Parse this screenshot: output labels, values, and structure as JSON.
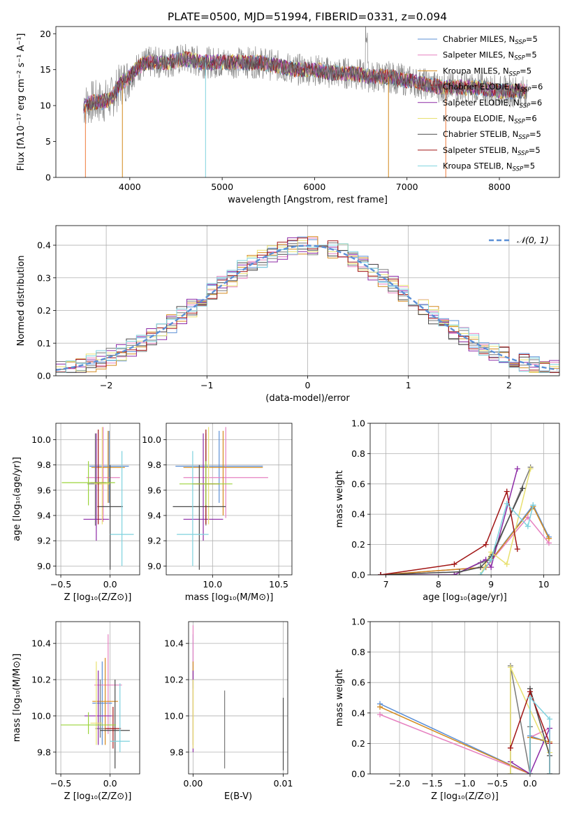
{
  "colors": {
    "series": [
      "#5b8fd6",
      "#e680c0",
      "#d4891c",
      "#7a7a7a",
      "#8c2aa6",
      "#e8e070",
      "#4a4a4a",
      "#a11515",
      "#7ed2de"
    ],
    "gauss": "#5b8fd6",
    "extra": [
      "#ef7a3a",
      "#9bd33a",
      "#8fa86a"
    ]
  },
  "chart_data": [
    {
      "id": "spectrum",
      "type": "line",
      "title": "PLATE=0500, MJD=51994, FIBERID=0331, z=0.094",
      "xlabel": "wavelength [Angstrom, rest frame]",
      "ylabel": "Flux [fλ10⁻¹⁷ erg cm⁻² s⁻¹ A⁻¹]",
      "xlim": [
        3200,
        8650
      ],
      "ylim": [
        0,
        21
      ],
      "xticks": [
        "4000",
        "5000",
        "6000",
        "7000",
        "8000"
      ],
      "yticks": [
        "0",
        "5",
        "10",
        "15",
        "20"
      ],
      "grid": false,
      "legend_position": "top-right",
      "legend": [
        {
          "name": "Chabrier MILES, N",
          "sub": "SSP",
          "tail": "=5"
        },
        {
          "name": "Salpeter MILES, N",
          "sub": "SSP",
          "tail": "=5"
        },
        {
          "name": "Kroupa MILES, N",
          "sub": "SSP",
          "tail": "=5"
        },
        {
          "name": "Chabrier ELODIE, N",
          "sub": "SSP",
          "tail": "=6"
        },
        {
          "name": "Salpeter ELODIE, N",
          "sub": "SSP",
          "tail": "=6"
        },
        {
          "name": "Kroupa ELODIE, N",
          "sub": "SSP",
          "tail": "=6"
        },
        {
          "name": "Chabrier STELIB, N",
          "sub": "SSP",
          "tail": "=5"
        },
        {
          "name": "Salpeter STELIB, N",
          "sub": "SSP",
          "tail": "=5"
        },
        {
          "name": "Kroupa STELIB, N",
          "sub": "SSP",
          "tail": "=5"
        }
      ],
      "continuum": [
        [
          3500,
          10
        ],
        [
          3600,
          10.5
        ],
        [
          3700,
          10.5
        ],
        [
          3800,
          11
        ],
        [
          3900,
          13
        ],
        [
          4000,
          14
        ],
        [
          4100,
          15.5
        ],
        [
          4200,
          16
        ],
        [
          4400,
          16
        ],
        [
          4600,
          16.5
        ],
        [
          4800,
          16
        ],
        [
          5000,
          16
        ],
        [
          5200,
          16
        ],
        [
          5400,
          16
        ],
        [
          5600,
          15.5
        ],
        [
          5800,
          15
        ],
        [
          6000,
          15
        ],
        [
          6200,
          14.5
        ],
        [
          6400,
          14.5
        ],
        [
          6600,
          14
        ],
        [
          6800,
          14
        ],
        [
          7000,
          13.5
        ],
        [
          7200,
          13
        ],
        [
          7400,
          12.5
        ],
        [
          7600,
          12.5
        ],
        [
          7800,
          12.5
        ],
        [
          8000,
          12
        ],
        [
          8200,
          12
        ],
        [
          8300,
          12
        ]
      ]
    },
    {
      "id": "residuals",
      "type": "line",
      "xlabel": "(data-model)/error",
      "ylabel": "Normed distribution",
      "xlim": [
        -2.5,
        2.5
      ],
      "ylim": [
        0,
        0.46
      ],
      "xticks": [
        "−2",
        "−1",
        "0",
        "1",
        "2"
      ],
      "yticks": [
        "0.0",
        "0.1",
        "0.2",
        "0.3",
        "0.4"
      ],
      "grid": true,
      "legend_position": "top-right",
      "legend": [
        "𝒩(0, 1)"
      ]
    },
    {
      "id": "age-vs-Z",
      "type": "scatter",
      "xlabel": "Z [log₁₀(Z/Z⊙)]",
      "ylabel": "age  [log₁₀(age/yr)]",
      "xlim": [
        -0.55,
        0.3
      ],
      "ylim": [
        8.93,
        10.13
      ],
      "xticks": [
        "−0.5",
        "0.0"
      ],
      "yticks": [
        "9.0",
        "9.2",
        "9.4",
        "9.6",
        "9.8",
        "10.0"
      ],
      "grid": true,
      "errorbars": [
        {
          "x": -0.01,
          "y": 9.79,
          "xerr": 0.2,
          "ylo": 9.5,
          "yhi": 10.07
        },
        {
          "x": -0.07,
          "y": 9.7,
          "xerr": 0.17,
          "ylo": 9.35,
          "yhi": 10.1
        },
        {
          "x": -0.02,
          "y": 9.78,
          "xerr": 0.17,
          "ylo": 9.5,
          "yhi": 10.07
        },
        {
          "x": -0.15,
          "y": 9.65,
          "xerr": 0.08,
          "ylo": 9.32,
          "yhi": 10.05
        },
        {
          "x": -0.14,
          "y": 9.37,
          "xerr": 0.13,
          "ylo": 9.2,
          "yhi": 10.05
        },
        {
          "x": -0.08,
          "y": 9.65,
          "xerr": 0.08,
          "ylo": 9.33,
          "yhi": 10.1
        },
        {
          "x": 0.0,
          "y": 9.47,
          "xerr": 0.13,
          "ylo": 8.97,
          "yhi": 9.8
        },
        {
          "x": -0.12,
          "y": 9.66,
          "xerr": 0.08,
          "ylo": 9.33,
          "yhi": 10.08
        },
        {
          "x": 0.12,
          "y": 9.25,
          "xerr": 0.12,
          "ylo": 9.0,
          "yhi": 9.91
        },
        {
          "x": -0.22,
          "y": 9.66,
          "xerr": 0.27,
          "ylo": 9.48,
          "yhi": 9.83
        }
      ]
    },
    {
      "id": "age-vs-mass",
      "type": "scatter",
      "xlabel": "mass [log₁₀(M/M⊙)]",
      "ylabel": "",
      "xlim": [
        9.65,
        10.6
      ],
      "ylim": [
        8.93,
        10.13
      ],
      "xticks": [
        "10.0",
        "10.5"
      ],
      "yticks": [
        "9.0",
        "9.2",
        "9.4",
        "9.6",
        "9.8",
        "10.0"
      ],
      "grid": true,
      "errorbars": [
        {
          "x": 10.05,
          "y": 9.79,
          "xerr": 0.33,
          "ylo": 9.5,
          "yhi": 10.07
        },
        {
          "x": 10.1,
          "y": 9.7,
          "xerr": 0.32,
          "ylo": 9.38,
          "yhi": 10.1
        },
        {
          "x": 10.08,
          "y": 9.78,
          "xerr": 0.3,
          "ylo": 9.4,
          "yhi": 10.07
        },
        {
          "x": 9.95,
          "y": 9.65,
          "xerr": 0.07,
          "ylo": 9.32,
          "yhi": 10.05
        },
        {
          "x": 9.93,
          "y": 9.37,
          "xerr": 0.15,
          "ylo": 9.2,
          "yhi": 10.05
        },
        {
          "x": 9.97,
          "y": 9.65,
          "xerr": 0.08,
          "ylo": 9.33,
          "yhi": 10.1
        },
        {
          "x": 9.9,
          "y": 9.47,
          "xerr": 0.2,
          "ylo": 8.97,
          "yhi": 9.8
        },
        {
          "x": 9.95,
          "y": 9.65,
          "xerr": 0.1,
          "ylo": 9.33,
          "yhi": 10.08
        },
        {
          "x": 9.85,
          "y": 9.25,
          "xerr": 0.12,
          "ylo": 9.0,
          "yhi": 9.91
        },
        {
          "x": 9.95,
          "y": 9.65,
          "xerr": 0.2,
          "ylo": 9.48,
          "yhi": 9.83
        }
      ]
    },
    {
      "id": "weight-vs-age",
      "type": "line",
      "xlabel": "age  [log₁₀(age/yr)]",
      "ylabel": "mass weight",
      "xlim": [
        6.7,
        10.3
      ],
      "ylim": [
        0,
        1.0
      ],
      "xticks": [
        "7",
        "8",
        "9",
        "10"
      ],
      "yticks": [
        "0.0",
        "0.2",
        "0.4",
        "0.6",
        "0.8",
        "1.0"
      ],
      "grid": true,
      "series": [
        {
          "x": [
            6.9,
            8.9,
            9.8,
            10.1
          ],
          "y": [
            0.0,
            0.05,
            0.46,
            0.25
          ]
        },
        {
          "x": [
            6.9,
            8.9,
            9.7,
            10.1
          ],
          "y": [
            0.0,
            0.05,
            0.38,
            0.21
          ]
        },
        {
          "x": [
            6.9,
            8.9,
            9.8,
            10.1
          ],
          "y": [
            0.0,
            0.05,
            0.45,
            0.24
          ]
        },
        {
          "x": [
            8.3,
            8.8,
            9.0,
            9.75
          ],
          "y": [
            0.0,
            0.08,
            0.1,
            0.71
          ]
        },
        {
          "x": [
            6.9,
            8.3,
            8.9,
            9.0,
            9.5
          ],
          "y": [
            0.0,
            0.0,
            0.1,
            0.05,
            0.7
          ]
        },
        {
          "x": [
            8.8,
            9.0,
            9.3,
            9.75
          ],
          "y": [
            0.0,
            0.15,
            0.07,
            0.7
          ]
        },
        {
          "x": [
            6.9,
            8.4,
            8.8,
            9.0,
            9.6
          ],
          "y": [
            0.0,
            0.02,
            0.05,
            0.12,
            0.57
          ]
        },
        {
          "x": [
            6.9,
            8.3,
            8.9,
            9.3,
            9.5
          ],
          "y": [
            0.0,
            0.07,
            0.2,
            0.55,
            0.17
          ]
        },
        {
          "x": [
            8.8,
            9.0,
            9.3,
            9.7,
            9.8
          ],
          "y": [
            0.0,
            0.1,
            0.47,
            0.32,
            0.46
          ]
        }
      ]
    },
    {
      "id": "mass-vs-Z",
      "type": "scatter",
      "xlabel": "Z [log₁₀(Z/Z⊙)]",
      "ylabel": "mass [log₁₀(M/M⊙)]",
      "xlim": [
        -0.55,
        0.3
      ],
      "ylim": [
        9.68,
        10.52
      ],
      "xticks": [
        "−0.5",
        "0.0"
      ],
      "yticks": [
        "9.8",
        "10.0",
        "10.2",
        "10.4"
      ],
      "grid": true,
      "errorbars": [
        {
          "x": -0.08,
          "y": 10.07,
          "xerr": 0.1,
          "ylo": 9.84,
          "yhi": 10.3
        },
        {
          "x": -0.02,
          "y": 10.17,
          "xerr": 0.14,
          "ylo": 9.9,
          "yhi": 10.45
        },
        {
          "x": -0.05,
          "y": 10.08,
          "xerr": 0.13,
          "ylo": 9.84,
          "yhi": 10.32
        },
        {
          "x": -0.1,
          "y": 9.93,
          "xerr": 0.05,
          "ylo": 9.88,
          "yhi": 10.2
        },
        {
          "x": -0.12,
          "y": 10.0,
          "xerr": 0.14,
          "ylo": 9.84,
          "yhi": 10.25
        },
        {
          "x": -0.14,
          "y": 9.96,
          "xerr": 0.06,
          "ylo": 9.84,
          "yhi": 10.3
        },
        {
          "x": 0.05,
          "y": 9.92,
          "xerr": 0.15,
          "ylo": 9.71,
          "yhi": 10.2
        },
        {
          "x": 0.03,
          "y": 9.93,
          "xerr": 0.08,
          "ylo": 9.82,
          "yhi": 10.05
        },
        {
          "x": 0.1,
          "y": 9.86,
          "xerr": 0.1,
          "ylo": 9.8,
          "yhi": 10.18
        },
        {
          "x": -0.22,
          "y": 9.95,
          "xerr": 0.28,
          "ylo": 9.9,
          "yhi": 10.02
        }
      ]
    },
    {
      "id": "mass-vs-EBV",
      "type": "scatter",
      "xlabel": "E(B-V)",
      "ylabel": "",
      "xlim": [
        -0.0005,
        0.0105
      ],
      "ylim": [
        9.68,
        10.52
      ],
      "xticks": [
        "0.00",
        "0.01"
      ],
      "yticks": [
        "9.8",
        "10.0",
        "10.2",
        "10.4"
      ],
      "grid": true,
      "errorbars": [
        {
          "x": 0.0,
          "y": 10.3,
          "ylo": 10.15,
          "yhi": 10.45
        },
        {
          "x": 0.0,
          "y": 10.35,
          "ylo": 10.2,
          "yhi": 10.5
        },
        {
          "x": 0.0,
          "y": 10.1,
          "ylo": 9.84,
          "yhi": 10.3
        },
        {
          "x": 0.0035,
          "y": 9.93,
          "ylo": 9.71,
          "yhi": 10.14
        },
        {
          "x": 0.0,
          "y": 10.05,
          "ylo": 9.8,
          "yhi": 10.25
        },
        {
          "x": 0.0,
          "y": 10.0,
          "ylo": 9.82,
          "yhi": 10.2
        },
        {
          "x": 0.01,
          "y": 9.9,
          "ylo": 9.7,
          "yhi": 10.1
        }
      ]
    },
    {
      "id": "weight-vs-Z",
      "type": "line",
      "xlabel": "Z [log₁₀(Z/Z⊙)]",
      "ylabel": "mass weight",
      "xlim": [
        -2.45,
        0.45
      ],
      "ylim": [
        0,
        1.0
      ],
      "xticks": [
        "−2.0",
        "−1.5",
        "−1.0",
        "−0.5",
        "0.0"
      ],
      "yticks": [
        "0.0",
        "0.2",
        "0.4",
        "0.6",
        "0.8",
        "1.0"
      ],
      "grid": true,
      "series": [
        {
          "x": [
            -2.3,
            0.0,
            0.0,
            0.2
          ],
          "y": [
            0.46,
            0.0,
            0.25,
            0.22
          ]
        },
        {
          "x": [
            -2.3,
            0.0,
            0.0,
            0.3
          ],
          "y": [
            0.39,
            0.0,
            0.24,
            0.3
          ]
        },
        {
          "x": [
            -2.3,
            0.0,
            0.0,
            0.3
          ],
          "y": [
            0.44,
            0.0,
            0.24,
            0.21
          ]
        },
        {
          "x": [
            -0.3,
            -0.3,
            0.0,
            0.0
          ],
          "y": [
            0.0,
            0.71,
            0.0,
            0.31
          ]
        },
        {
          "x": [
            -0.3,
            0.0,
            0.3,
            0.3
          ],
          "y": [
            0.08,
            0.0,
            0.3,
            0.0
          ]
        },
        {
          "x": [
            -0.3,
            -0.3,
            0.3,
            0.3
          ],
          "y": [
            0.0,
            0.7,
            0.14,
            0.0
          ]
        },
        {
          "x": [
            0.0,
            0.0,
            0.3,
            0.3
          ],
          "y": [
            0.0,
            0.56,
            0.12,
            0.0
          ]
        },
        {
          "x": [
            -0.3,
            0.0,
            0.3,
            0.3
          ],
          "y": [
            0.17,
            0.54,
            0.2,
            0.0
          ]
        },
        {
          "x": [
            0.0,
            0.0,
            0.3,
            0.3
          ],
          "y": [
            0.0,
            0.5,
            0.36,
            0.0
          ]
        }
      ]
    }
  ]
}
